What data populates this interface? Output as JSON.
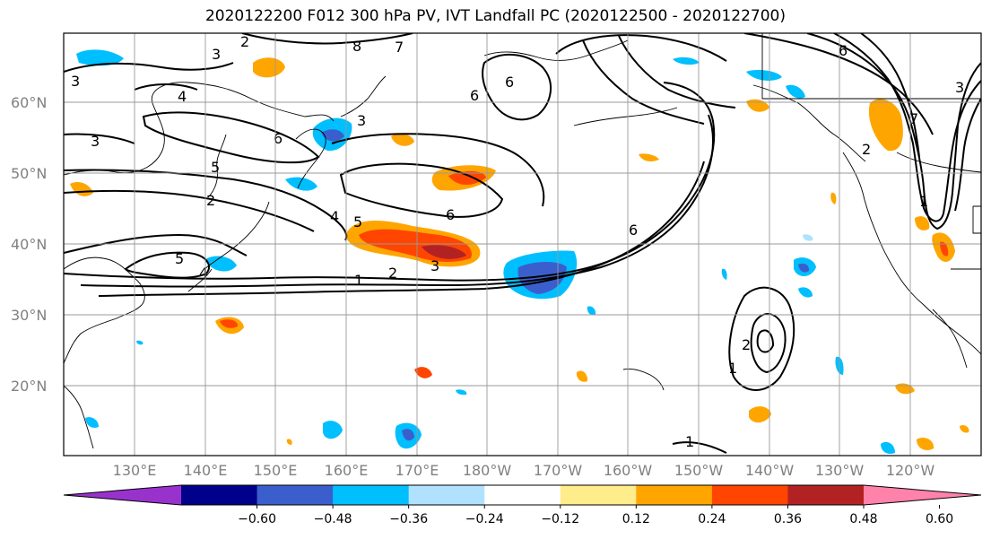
{
  "title": "2020122200 F012 300 hPa PV, IVT Landfall PC (2020122500 - 2020122700)",
  "lat_labels": [
    "60°N",
    "50°N",
    "40°N",
    "30°N",
    "20°N"
  ],
  "lon_labels": [
    "130°E",
    "140°E",
    "150°E",
    "160°E",
    "170°E",
    "180°W",
    "170°W",
    "160°W",
    "150°W",
    "140°W",
    "130°W",
    "120°W"
  ],
  "colorbar": {
    "ticks": [
      "−0.60",
      "−0.48",
      "−0.36",
      "−0.24",
      "−0.12",
      "0.12",
      "0.24",
      "0.36",
      "0.48",
      "0.60"
    ],
    "colors": [
      "#9932cc",
      "#00008b",
      "#3a5fcd",
      "#00bfff",
      "#b0e2ff",
      "#ffffff",
      "#ffec8b",
      "#ffa500",
      "#ff4500",
      "#b22222",
      "#ff82ab"
    ]
  },
  "contour_labels": [
    "3",
    "2",
    "8",
    "7",
    "6",
    "3",
    "4",
    "3",
    "6",
    "5",
    "2",
    "6",
    "5",
    "4",
    "6",
    "5",
    "3",
    "4",
    "1",
    "2",
    "3",
    "6",
    "1",
    "2",
    "1",
    "6",
    "7",
    "2",
    "1",
    "3"
  ]
}
